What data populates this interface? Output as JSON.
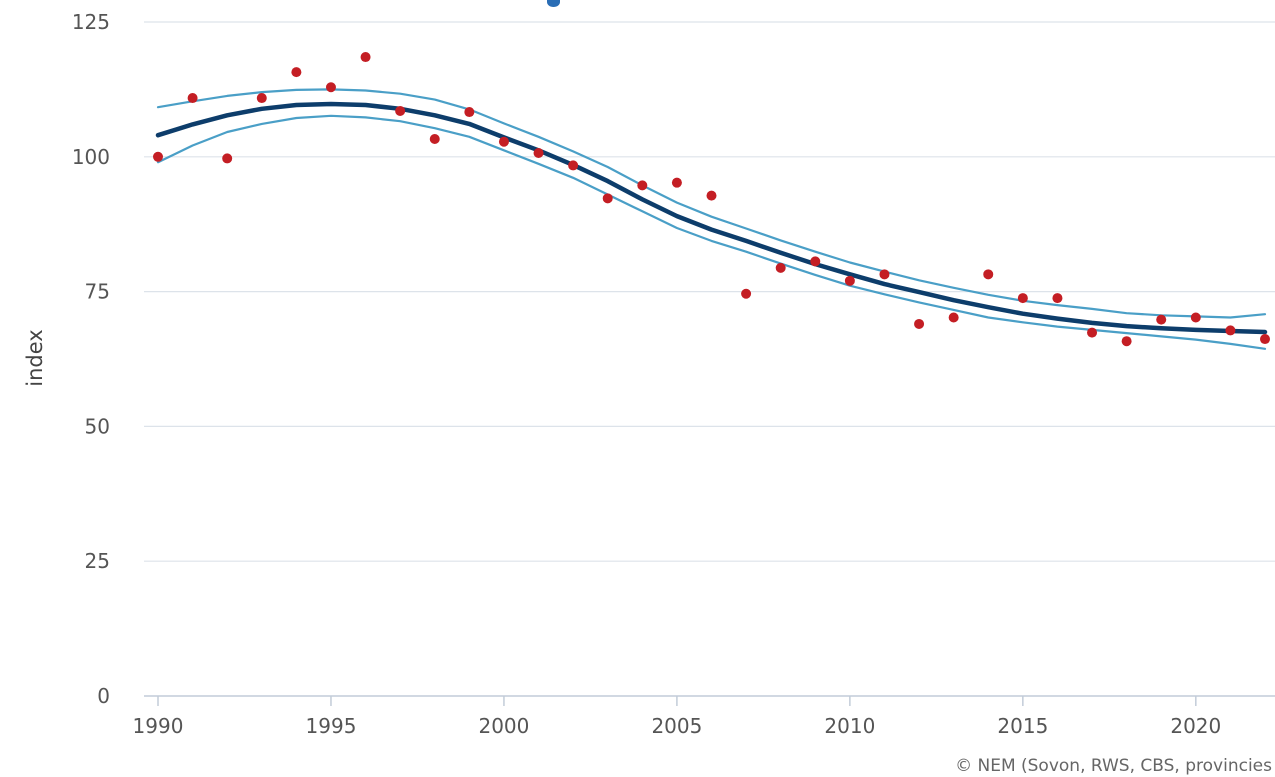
{
  "chart_data": {
    "type": "line",
    "title": "",
    "xlabel": "",
    "ylabel": "index",
    "xlim": [
      1990,
      2022
    ],
    "ylim": [
      0,
      125
    ],
    "x_ticks": [
      1990,
      1995,
      2000,
      2005,
      2010,
      2015,
      2020
    ],
    "y_ticks": [
      0,
      25,
      50,
      75,
      100,
      125
    ],
    "grid": "horizontal",
    "credit": "© NEM (Sovon, RWS, CBS, provincies",
    "colors": {
      "trend": "#0d3d6b",
      "confidence": "#4a9fc7",
      "points": "#c41e24",
      "grid": "#dde3ea",
      "axis": "#c2ccd8",
      "text": "#555555"
    },
    "series": [
      {
        "type": "scatter",
        "x": [
          1990,
          1991,
          1992,
          1993,
          1994,
          1995,
          1996,
          1997,
          1998,
          1999,
          2000,
          2001,
          2002,
          2003,
          2004,
          2005,
          2006,
          2007,
          2008,
          2009,
          2010,
          2011,
          2012,
          2013,
          2014,
          2015,
          2016,
          2017,
          2018,
          2019,
          2020,
          2021,
          2022
        ],
        "y": [
          100.0,
          110.9,
          99.7,
          110.9,
          115.7,
          112.9,
          118.5,
          108.5,
          103.3,
          108.3,
          102.8,
          100.7,
          98.4,
          92.3,
          94.7,
          95.2,
          92.8,
          74.6,
          79.4,
          80.6,
          77.0,
          78.2,
          69.0,
          70.2,
          78.2,
          73.8,
          73.8,
          67.4,
          65.8,
          69.8,
          70.2,
          67.8,
          66.2
        ]
      },
      {
        "type": "line",
        "x": [
          1990,
          1991,
          1992,
          1993,
          1994,
          1995,
          1996,
          1997,
          1998,
          1999,
          2000,
          2001,
          2002,
          2003,
          2004,
          2005,
          2006,
          2007,
          2008,
          2009,
          2010,
          2011,
          2012,
          2013,
          2014,
          2015,
          2016,
          2017,
          2018,
          2019,
          2020,
          2021,
          2022
        ],
        "y": [
          104.0,
          106.0,
          107.7,
          108.9,
          109.6,
          109.8,
          109.6,
          108.9,
          107.7,
          106.1,
          103.6,
          101.2,
          98.5,
          95.5,
          92.1,
          89.0,
          86.5,
          84.4,
          82.2,
          80.1,
          78.2,
          76.4,
          74.9,
          73.4,
          72.1,
          70.9,
          70.0,
          69.2,
          68.6,
          68.2,
          67.9,
          67.7,
          67.5
        ]
      },
      {
        "type": "line",
        "x": [
          1990,
          1991,
          1992,
          1993,
          1994,
          1995,
          1996,
          1997,
          1998,
          1999,
          2000,
          2001,
          2002,
          2003,
          2004,
          2005,
          2006,
          2007,
          2008,
          2009,
          2010,
          2011,
          2012,
          2013,
          2014,
          2015,
          2016,
          2017,
          2018,
          2019,
          2020,
          2021,
          2022
        ],
        "y": [
          109.2,
          110.3,
          111.3,
          112.0,
          112.4,
          112.5,
          112.3,
          111.7,
          110.6,
          108.8,
          106.2,
          103.7,
          101.0,
          98.1,
          94.7,
          91.5,
          88.9,
          86.7,
          84.5,
          82.4,
          80.4,
          78.7,
          77.1,
          75.7,
          74.4,
          73.3,
          72.5,
          71.8,
          71.0,
          70.6,
          70.4,
          70.2,
          70.8
        ]
      },
      {
        "type": "line",
        "x": [
          1990,
          1991,
          1992,
          1993,
          1994,
          1995,
          1996,
          1997,
          1998,
          1999,
          2000,
          2001,
          2002,
          2003,
          2004,
          2005,
          2006,
          2007,
          2008,
          2009,
          2010,
          2011,
          2012,
          2013,
          2014,
          2015,
          2016,
          2017,
          2018,
          2019,
          2020,
          2021,
          2022
        ],
        "y": [
          99.0,
          102.1,
          104.6,
          106.1,
          107.2,
          107.6,
          107.3,
          106.6,
          105.3,
          103.7,
          101.2,
          98.7,
          96.1,
          93.0,
          89.9,
          86.8,
          84.4,
          82.4,
          80.2,
          78.1,
          76.1,
          74.5,
          73.0,
          71.6,
          70.2,
          69.3,
          68.5,
          67.9,
          67.3,
          66.7,
          66.1,
          65.3,
          64.4
        ]
      }
    ]
  }
}
